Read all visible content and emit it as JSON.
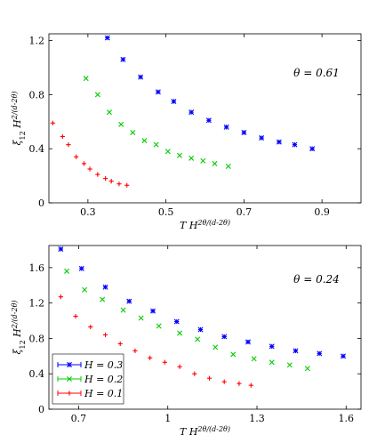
{
  "chart_data": [
    {
      "type": "scatter",
      "ylabel": "ξ12 H^2/(d-2θ)",
      "xlabel": "T H^2θ/(d-2θ)",
      "annotation": "θ = 0.61",
      "xlim": [
        0.2,
        1.0
      ],
      "ylim": [
        0.0,
        1.25
      ],
      "xticks": [
        0.3,
        0.5,
        0.7,
        0.9
      ],
      "xtick_labels": [
        "0.3",
        "0.5",
        "0.7",
        "0.9"
      ],
      "yticks": [
        0.0,
        0.4,
        0.8,
        1.2
      ],
      "ytick_labels": [
        "0",
        "0.4",
        "0.8",
        "1.2"
      ],
      "series": [
        {
          "color": "#0000ff",
          "marker": "asterisk",
          "x": [
            0.35,
            0.39,
            0.435,
            0.48,
            0.52,
            0.565,
            0.61,
            0.655,
            0.7,
            0.745,
            0.79,
            0.83,
            0.875
          ],
          "y": [
            1.22,
            1.06,
            0.93,
            0.82,
            0.75,
            0.67,
            0.61,
            0.56,
            0.52,
            0.48,
            0.45,
            0.43,
            0.4
          ]
        },
        {
          "color": "#00cc00",
          "marker": "x",
          "x": [
            0.295,
            0.325,
            0.355,
            0.385,
            0.415,
            0.445,
            0.475,
            0.505,
            0.535,
            0.565,
            0.595,
            0.625,
            0.66
          ],
          "y": [
            0.92,
            0.8,
            0.67,
            0.58,
            0.52,
            0.46,
            0.43,
            0.38,
            0.35,
            0.33,
            0.31,
            0.29,
            0.27
          ]
        },
        {
          "color": "#ff0000",
          "marker": "plus",
          "x": [
            0.21,
            0.235,
            0.25,
            0.27,
            0.29,
            0.305,
            0.325,
            0.345,
            0.36,
            0.38,
            0.4
          ],
          "y": [
            0.59,
            0.49,
            0.43,
            0.34,
            0.29,
            0.25,
            0.21,
            0.18,
            0.16,
            0.14,
            0.13
          ]
        }
      ]
    },
    {
      "type": "scatter",
      "ylabel": "ξ12 H^2/(d-2θ)",
      "xlabel": "T H^2θ/(d-2θ)",
      "annotation": "θ = 0.24",
      "xlim": [
        0.6,
        1.65
      ],
      "ylim": [
        0.0,
        1.85
      ],
      "xticks": [
        0.7,
        1.0,
        1.3,
        1.6
      ],
      "xtick_labels": [
        "0.7",
        "1",
        "1.3",
        "1.6"
      ],
      "yticks": [
        0.0,
        0.4,
        0.8,
        1.2,
        1.6
      ],
      "ytick_labels": [
        "0",
        "0.4",
        "0.8",
        "1.2",
        "1.6"
      ],
      "legend": {
        "placement": "bottom-left"
      },
      "series": [
        {
          "name": "H = 0.3",
          "color": "#0000ff",
          "marker": "asterisk",
          "x": [
            0.64,
            0.71,
            0.79,
            0.87,
            0.95,
            1.03,
            1.11,
            1.19,
            1.27,
            1.35,
            1.43,
            1.51,
            1.59
          ],
          "y": [
            1.81,
            1.59,
            1.38,
            1.22,
            1.11,
            0.99,
            0.9,
            0.82,
            0.76,
            0.71,
            0.66,
            0.63,
            0.6
          ]
        },
        {
          "name": "H = 0.2",
          "color": "#00cc00",
          "marker": "x",
          "x": [
            0.66,
            0.72,
            0.78,
            0.85,
            0.91,
            0.97,
            1.04,
            1.1,
            1.16,
            1.22,
            1.29,
            1.35,
            1.41,
            1.47
          ],
          "y": [
            1.56,
            1.35,
            1.24,
            1.12,
            1.03,
            0.94,
            0.86,
            0.79,
            0.7,
            0.62,
            0.57,
            0.53,
            0.5,
            0.46
          ]
        },
        {
          "name": "H = 0.1",
          "color": "#ff0000",
          "marker": "plus",
          "x": [
            0.64,
            0.69,
            0.74,
            0.79,
            0.84,
            0.89,
            0.94,
            0.99,
            1.04,
            1.09,
            1.14,
            1.19,
            1.24,
            1.28
          ],
          "y": [
            1.27,
            1.05,
            0.93,
            0.84,
            0.74,
            0.66,
            0.58,
            0.53,
            0.48,
            0.4,
            0.35,
            0.31,
            0.29,
            0.27
          ]
        }
      ]
    }
  ]
}
